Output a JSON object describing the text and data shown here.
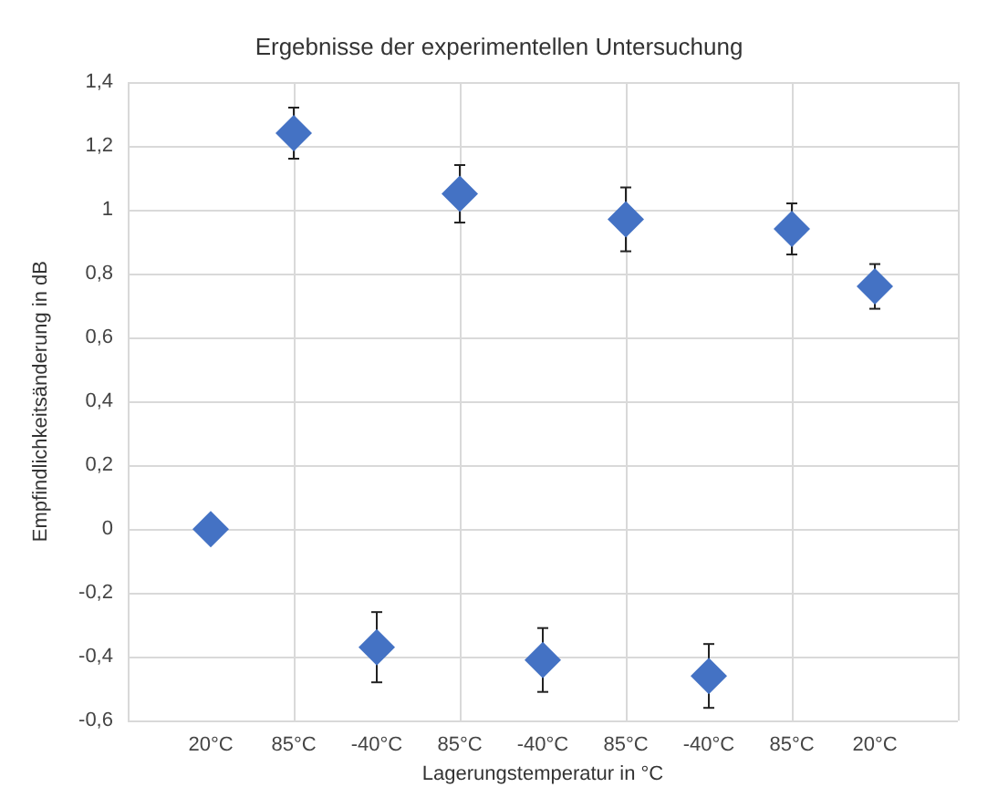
{
  "chart_data": {
    "type": "scatter",
    "title": "Ergebnisse der experimentellen Untersuchung",
    "xlabel": "Lagerungstemperatur in °C",
    "ylabel": "Empfindlichkeitsänderung in dB",
    "categories": [
      "20°C",
      "85°C",
      "-40°C",
      "85°C",
      "-40°C",
      "85°C",
      "-40°C",
      "85°C",
      "20°C"
    ],
    "series": [
      {
        "color": "#4472c4",
        "values": [
          0,
          1.24,
          -0.37,
          1.05,
          -0.41,
          0.97,
          -0.46,
          0.94,
          0.76
        ],
        "errors": [
          null,
          0.08,
          0.11,
          0.09,
          0.1,
          0.1,
          0.1,
          0.08,
          0.07
        ]
      }
    ],
    "ylim": [
      -0.6,
      1.4
    ],
    "yticks": [
      {
        "value": -0.6,
        "label": "-0,6"
      },
      {
        "value": -0.4,
        "label": "-0,4"
      },
      {
        "value": -0.2,
        "label": "-0,2"
      },
      0,
      {
        "value": 0.2,
        "label": "0,2"
      },
      {
        "value": 0.4,
        "label": "0,4"
      },
      {
        "value": 0.6,
        "label": "0,6"
      },
      {
        "value": 0.8,
        "label": "0,8"
      },
      1,
      {
        "value": 1.2,
        "label": "1,2"
      },
      {
        "value": 1.4,
        "label": "1,4"
      }
    ],
    "grid": true,
    "marker": "diamond"
  }
}
